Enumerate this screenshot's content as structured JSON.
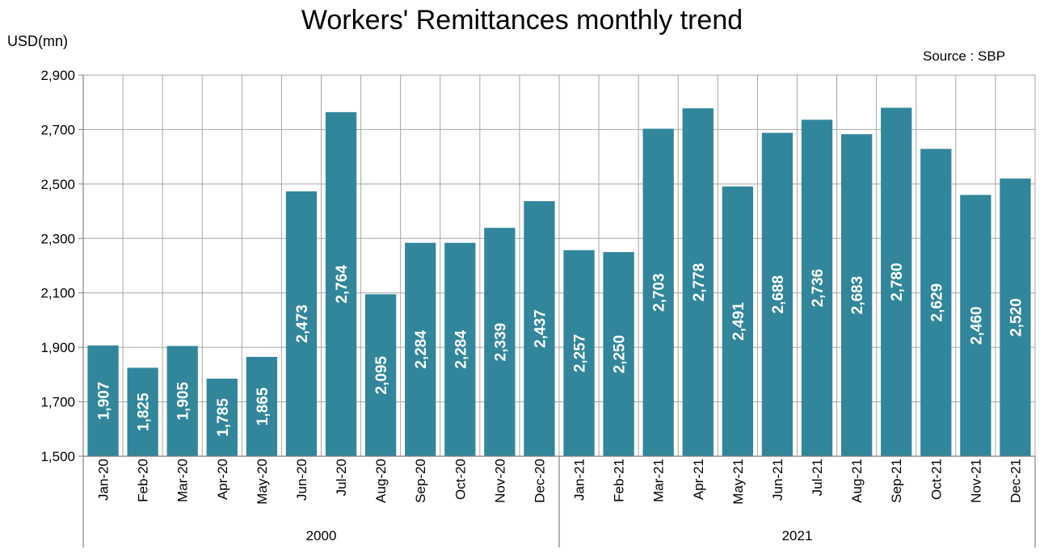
{
  "title": "Workers' Remittances monthly trend",
  "y_unit": "USD(mn)",
  "source": "Source : SBP",
  "colors": {
    "bar": "#31869b",
    "grid": "#a6a6a6",
    "axis": "#808080",
    "label": "#ffffff"
  },
  "chart_data": {
    "type": "bar",
    "title": "Workers' Remittances monthly trend",
    "ylabel": "USD(mn)",
    "xlabel": "",
    "ylim": [
      1500,
      2900
    ],
    "yticks": [
      "1,500",
      "1,700",
      "1,900",
      "2,100",
      "2,300",
      "2,500",
      "2,700",
      "2,900"
    ],
    "grid": true,
    "categories": [
      "Jan-20",
      "Feb-20",
      "Mar-20",
      "Apr-20",
      "May-20",
      "Jun-20",
      "Jul-20",
      "Aug-20",
      "Sep-20",
      "Oct-20",
      "Nov-20",
      "Dec-20",
      "Jan-21",
      "Feb-21",
      "Mar-21",
      "Apr-21",
      "May-21",
      "Jun-21",
      "Jul-21",
      "Aug-21",
      "Sep-21",
      "Oct-21",
      "Nov-21",
      "Dec-21"
    ],
    "values": [
      1907,
      1825,
      1905,
      1785,
      1865,
      2473,
      2764,
      2095,
      2284,
      2284,
      2339,
      2437,
      2257,
      2250,
      2703,
      2778,
      2491,
      2688,
      2736,
      2683,
      2780,
      2629,
      2460,
      2520
    ],
    "data_labels": [
      "1,907",
      "1,825",
      "1,905",
      "1,785",
      "1,865",
      "2,473",
      "2,764",
      "2,095",
      "2,284",
      "2,284",
      "2,339",
      "2,437",
      "2,257",
      "2,250",
      "2,703",
      "2,778",
      "2,491",
      "2,688",
      "2,736",
      "2,683",
      "2,780",
      "2,629",
      "2,460",
      "2,520"
    ],
    "groups": [
      {
        "label": "2000",
        "count": 12
      },
      {
        "label": "2021",
        "count": 12
      }
    ]
  }
}
